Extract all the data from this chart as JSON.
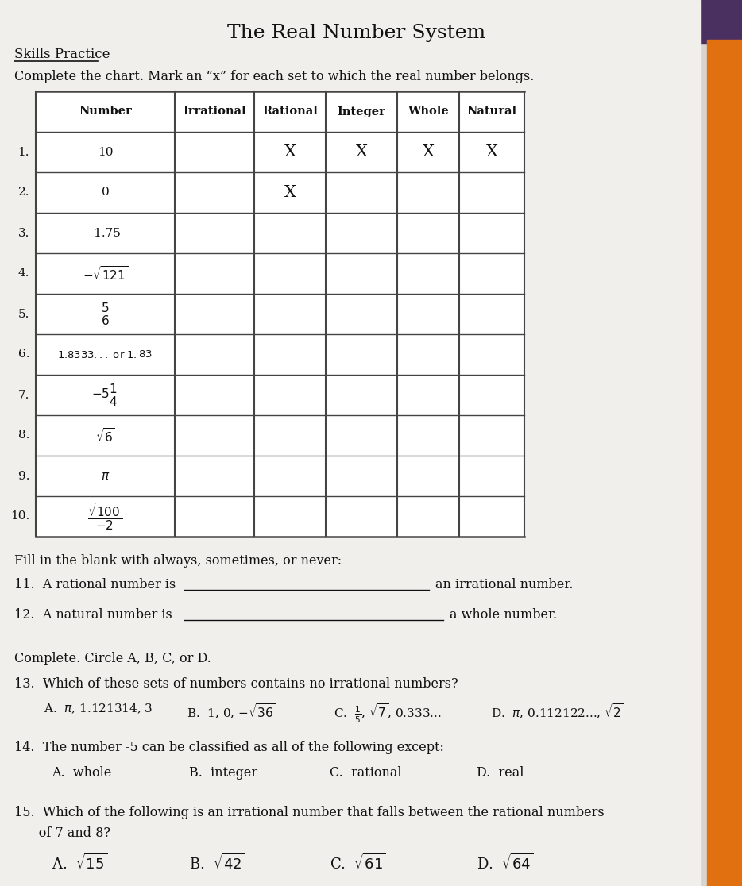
{
  "title": "The Real Number System",
  "subtitle": "Skills Practice",
  "instruction1": "Complete the chart. Mark an “x” for each set to which the real number belongs.",
  "table_headers": [
    "Number",
    "Irrational",
    "Rational",
    "Integer",
    "Whole",
    "Natural"
  ],
  "row_numbers": [
    "1.",
    "2.",
    "3.",
    "4.",
    "5.",
    "6.",
    "7.",
    "8.",
    "9.",
    "10."
  ],
  "marks": [
    [
      "",
      "X",
      "X",
      "X",
      "X"
    ],
    [
      "",
      "X",
      "",
      "",
      ""
    ],
    [
      "",
      "",
      "",
      "",
      ""
    ],
    [
      "",
      "",
      "",
      "",
      ""
    ],
    [
      "",
      "",
      "",
      "",
      ""
    ],
    [
      "",
      "",
      "",
      "",
      ""
    ],
    [
      "",
      "",
      "",
      "",
      ""
    ],
    [
      "",
      "",
      "",
      "",
      ""
    ],
    [
      "",
      "",
      "",
      "",
      ""
    ],
    [
      "",
      "",
      "",
      "",
      ""
    ]
  ],
  "fill_blank_header": "Fill in the blank with always, sometimes, or never:",
  "circle_header": "Complete. Circle A, B, C, or D.",
  "q13_text": "13.  Which of these sets of numbers contains no irrational numbers?",
  "q14_text": "14.  The number -5 can be classified as all of the following except:",
  "q15_line1": "15.  Which of the following is an irrational number that falls between the rational numbers",
  "q15_line2": "      of 7 and 8?",
  "bg_color": "#d8d5d0",
  "paper_color": "#f0efec",
  "text_color": "#111111",
  "table_line_color": "#444444",
  "orange_color": "#e07010",
  "purple_color": "#4a3060",
  "fig_w": 9.34,
  "fig_h": 11.16,
  "dpi": 100
}
